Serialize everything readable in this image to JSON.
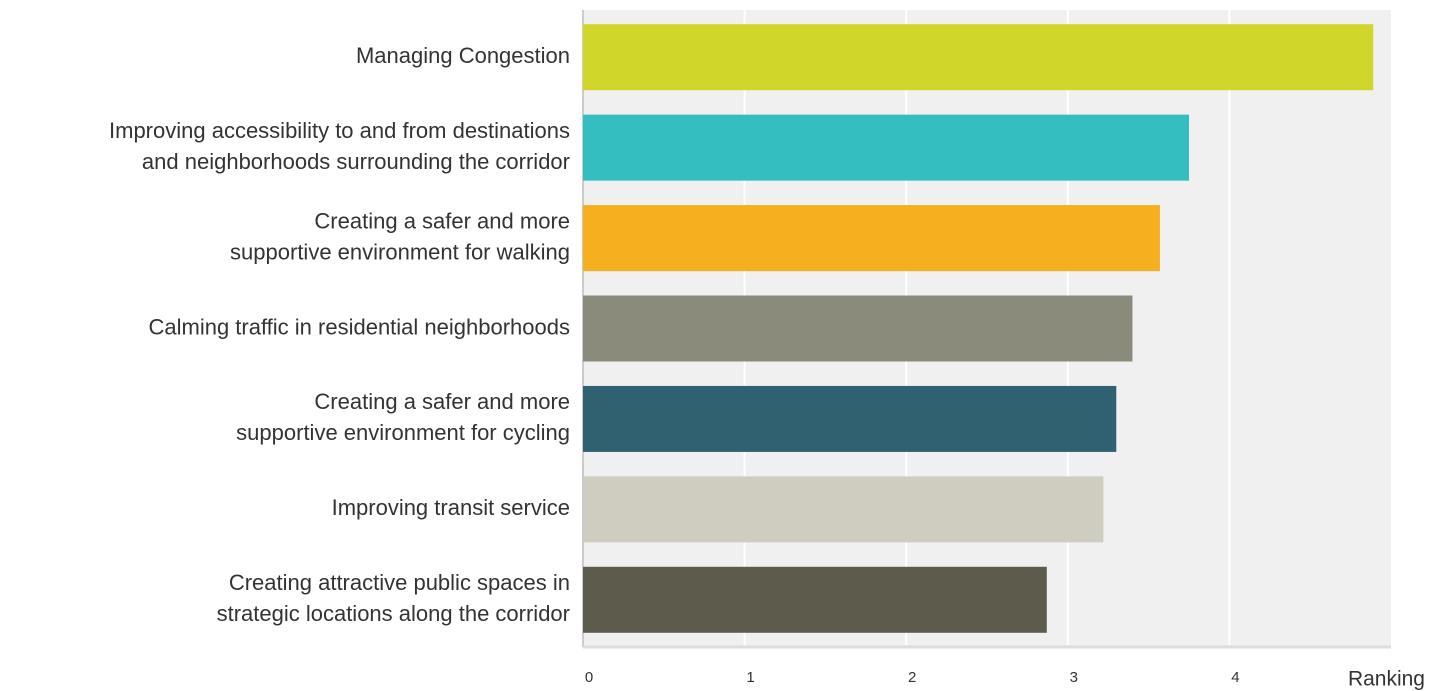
{
  "chart_data": {
    "type": "barh",
    "categories": [
      [
        "Managing Congestion"
      ],
      [
        "Improving accessibility to and from destinations",
        "and neighborhoods surrounding the corridor"
      ],
      [
        "Creating a safer and more",
        "supportive environment for walking"
      ],
      [
        "Calming traffic in residential neighborhoods"
      ],
      [
        "Creating a safer and more",
        "supportive environment for cycling"
      ],
      [
        "Improving transit service"
      ],
      [
        "Creating attractive public spaces in",
        "strategic locations along the corridor"
      ]
    ],
    "values": [
      4.89,
      3.75,
      3.57,
      3.4,
      3.3,
      3.22,
      2.87
    ],
    "colors": [
      "#d0d62a",
      "#35bec0",
      "#f6af1e",
      "#8a8b7a",
      "#2f6170",
      "#cfcdbf",
      "#5d5b4b"
    ],
    "xlim": [
      0,
      5
    ],
    "xticks": [
      0,
      1,
      2,
      3,
      4
    ],
    "xlabel": "Ranking",
    "grid": true
  }
}
